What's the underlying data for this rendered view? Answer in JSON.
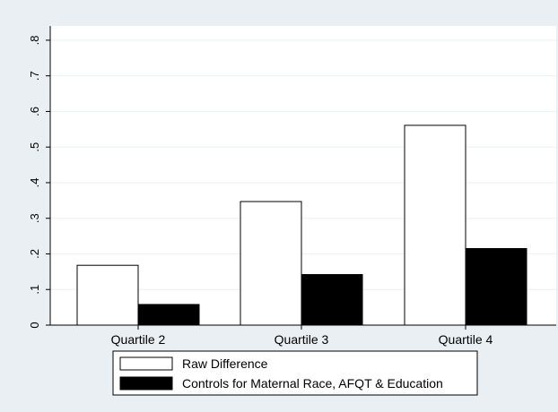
{
  "chart_data": {
    "type": "bar",
    "categories": [
      "Quartile 2",
      "Quartile 3",
      "Quartile 4"
    ],
    "series": [
      {
        "name": "Raw Difference",
        "values": [
          0.168,
          0.347,
          0.561
        ],
        "color": "#ffffff"
      },
      {
        "name": "Controls for Maternal Race, AFQT & Education",
        "values": [
          0.058,
          0.142,
          0.215
        ],
        "color": "#000000"
      }
    ],
    "yticks": [
      0,
      0.1,
      0.2,
      0.3,
      0.4,
      0.5,
      0.6,
      0.7,
      0.8
    ],
    "ytick_labels": [
      "0",
      ".1",
      ".2",
      ".3",
      ".4",
      ".5",
      ".6",
      ".7",
      ".8"
    ],
    "ylim": [
      0,
      0.84
    ],
    "grid": true,
    "legend_position": "bottom",
    "colors": {
      "outer_background": "#e9eff3",
      "plot_background": "#ffffff",
      "gridline": "#eaf2f3",
      "bar_outline": "#000000"
    }
  }
}
